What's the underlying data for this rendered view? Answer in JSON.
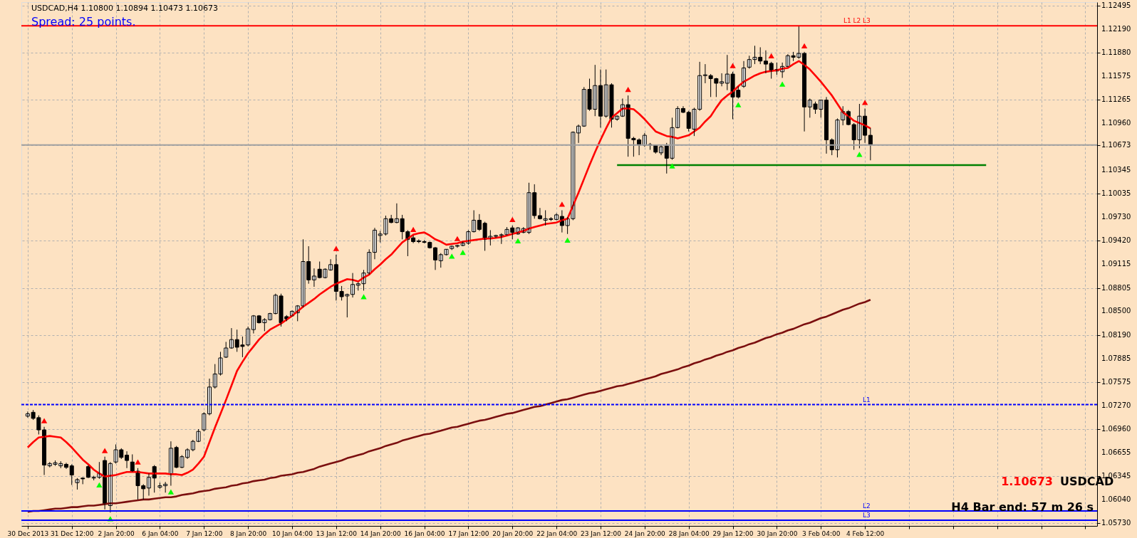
{
  "chart_data": {
    "type": "candlestick",
    "title": "USDCAD,H4  1.10800 1.10894 1.10473 1.10673",
    "categories": [
      "30 Dec 2013",
      null,
      null,
      null,
      null,
      null,
      null,
      null,
      "31 Dec 12:00",
      null,
      null,
      null,
      null,
      null,
      null,
      null,
      "2 Jan 20:00",
      null,
      null,
      null,
      null,
      null,
      null,
      null,
      "6 Jan 04:00",
      null,
      null,
      null,
      null,
      null,
      null,
      null,
      "7 Jan 12:00",
      null,
      null,
      null,
      null,
      null,
      null,
      null,
      "8 Jan 20:00",
      null,
      null,
      null,
      null,
      null,
      null,
      null,
      "10 Jan 04:00",
      null,
      null,
      null,
      null,
      null,
      null,
      null,
      "13 Jan 12:00",
      null,
      null,
      null,
      null,
      null,
      null,
      null,
      "14 Jan 20:00",
      null,
      null,
      null,
      null,
      null,
      null,
      null,
      "16 Jan 04:00",
      null,
      null,
      null,
      null,
      null,
      null,
      null,
      "17 Jan 12:00",
      null,
      null,
      null,
      null,
      null,
      null,
      null,
      "20 Jan 20:00",
      null,
      null,
      null,
      null,
      null,
      null,
      null,
      "22 Jan 04:00",
      null,
      null,
      null,
      null,
      null,
      null,
      null,
      "23 Jan 12:00",
      null,
      null,
      null,
      null,
      null,
      null,
      null,
      "24 Jan 20:00",
      null,
      null,
      null,
      null,
      null,
      null,
      null,
      "28 Jan 04:00",
      null,
      null,
      null,
      null,
      null,
      null,
      null,
      "29 Jan 12:00",
      null,
      null,
      null,
      null,
      null,
      null,
      null,
      "30 Jan 20:00",
      null,
      null,
      null,
      null,
      null,
      null,
      null,
      "3 Feb 04:00",
      null,
      null,
      null,
      null,
      null,
      null,
      null,
      "4 Feb 12:00",
      null,
      null,
      null,
      null,
      null,
      null,
      null,
      null,
      null,
      null,
      null,
      null,
      null,
      null,
      null,
      null,
      null,
      null,
      null,
      null,
      null,
      null,
      null,
      null,
      null,
      null,
      null,
      null,
      null,
      null,
      null,
      null,
      null,
      null,
      null,
      null,
      null,
      null,
      null,
      null,
      null
    ],
    "ohlc": [
      [
        1.0713,
        1.0719,
        1.0711,
        1.0716
      ],
      [
        1.0718,
        1.0721,
        1.0708,
        1.071
      ],
      [
        1.0711,
        1.0714,
        1.0689,
        1.0695
      ],
      [
        1.0695,
        1.0699,
        1.0636,
        1.0649
      ],
      [
        1.0648,
        1.0653,
        1.0646,
        1.0651
      ],
      [
        1.065,
        1.0655,
        1.0648,
        1.0652
      ],
      [
        1.0648,
        1.0654,
        1.0645,
        1.0651
      ],
      [
        1.065,
        1.0652,
        1.0644,
        1.0646
      ],
      [
        1.0648,
        1.065,
        1.0623,
        1.0636
      ],
      [
        1.0626,
        1.0632,
        1.0617,
        1.063
      ],
      [
        1.0632,
        1.0633,
        1.0624,
        1.0631
      ],
      [
        1.0647,
        1.0649,
        1.0632,
        1.0633
      ],
      [
        1.0632,
        1.0635,
        1.0629,
        1.0633
      ],
      [
        1.0633,
        1.0653,
        1.0631,
        1.0638
      ],
      [
        1.0655,
        1.066,
        1.0591,
        1.0598
      ],
      [
        1.0596,
        1.0653,
        1.0587,
        1.0651
      ],
      [
        1.0653,
        1.0676,
        1.0651,
        1.0669
      ],
      [
        1.0669,
        1.0671,
        1.0657,
        1.0659
      ],
      [
        1.0662,
        1.0667,
        1.0645,
        1.0655
      ],
      [
        1.0653,
        1.0663,
        1.064,
        1.0641
      ],
      [
        1.0641,
        1.0645,
        1.0604,
        1.0622
      ],
      [
        1.0622,
        1.0624,
        1.0604,
        1.0618
      ],
      [
        1.0619,
        1.0638,
        1.0609,
        1.0633
      ],
      [
        1.0647,
        1.0649,
        1.0613,
        1.0632
      ],
      [
        1.062,
        1.0626,
        1.0618,
        1.0622
      ],
      [
        1.0622,
        1.0627,
        1.0613,
        1.0624
      ],
      [
        1.0637,
        1.068,
        1.0622,
        1.0671
      ],
      [
        1.0672,
        1.0674,
        1.0645,
        1.0646
      ],
      [
        1.0646,
        1.0662,
        1.0645,
        1.066
      ],
      [
        1.0659,
        1.0671,
        1.0657,
        1.0669
      ],
      [
        1.0669,
        1.0682,
        1.0667,
        1.068
      ],
      [
        1.068,
        1.0696,
        1.0679,
        1.0693
      ],
      [
        1.0695,
        1.0718,
        1.0693,
        1.0716
      ],
      [
        1.0716,
        1.0762,
        1.0714,
        1.0751
      ],
      [
        1.0751,
        1.0781,
        1.0749,
        1.0768
      ],
      [
        1.0768,
        1.0797,
        1.0766,
        1.0789
      ],
      [
        1.079,
        1.081,
        1.0789,
        1.0802
      ],
      [
        1.0802,
        1.0828,
        1.0801,
        1.0813
      ],
      [
        1.0813,
        1.0826,
        1.0797,
        1.0803
      ],
      [
        1.0806,
        1.0817,
        1.079,
        1.0804
      ],
      [
        1.0806,
        1.083,
        1.0804,
        1.0827
      ],
      [
        1.0826,
        1.0845,
        1.0821,
        1.0844
      ],
      [
        1.0844,
        1.0845,
        1.0834,
        1.0835
      ],
      [
        1.0835,
        1.0841,
        1.0824,
        1.0839
      ],
      [
        1.0839,
        1.0848,
        1.0838,
        1.0847
      ],
      [
        1.0847,
        1.0873,
        1.0846,
        1.0871
      ],
      [
        1.087,
        1.0873,
        1.083,
        1.0835
      ],
      [
        1.0843,
        1.0845,
        1.0837,
        1.084
      ],
      [
        1.0844,
        1.0851,
        1.0843,
        1.085
      ],
      [
        1.0848,
        1.0858,
        1.0837,
        1.0857
      ],
      [
        1.0857,
        1.0944,
        1.0855,
        1.0915
      ],
      [
        1.0915,
        1.0935,
        1.0886,
        1.0891
      ],
      [
        1.0891,
        1.0906,
        1.0882,
        1.0896
      ],
      [
        1.0905,
        1.0915,
        1.0893,
        1.0894
      ],
      [
        1.0894,
        1.0906,
        1.0893,
        1.0905
      ],
      [
        1.0904,
        1.0918,
        1.0903,
        1.0911
      ],
      [
        1.0911,
        1.0924,
        1.0864,
        1.0876
      ],
      [
        1.0876,
        1.0883,
        1.0864,
        1.0869
      ],
      [
        1.087,
        1.0873,
        1.0842,
        1.0872
      ],
      [
        1.0872,
        1.09,
        1.0868,
        1.0885
      ],
      [
        1.0884,
        1.0888,
        1.0877,
        1.0886
      ],
      [
        1.0886,
        1.0904,
        1.0877,
        1.09
      ],
      [
        1.09,
        1.0931,
        1.0898,
        1.0927
      ],
      [
        1.0927,
        1.0959,
        1.0918,
        1.0956
      ],
      [
        1.0949,
        1.0955,
        1.094,
        1.0951
      ],
      [
        1.0951,
        1.0975,
        1.0949,
        1.0971
      ],
      [
        1.0971,
        1.0976,
        1.0965,
        1.0966
      ],
      [
        1.0966,
        1.0991,
        1.0965,
        1.0971
      ],
      [
        1.0971,
        1.0976,
        1.0944,
        1.0954
      ],
      [
        1.0954,
        1.0956,
        1.0922,
        1.0944
      ],
      [
        1.0946,
        1.0949,
        1.0939,
        1.0941
      ],
      [
        1.0942,
        1.0944,
        1.0939,
        1.0941
      ],
      [
        1.0941,
        1.0943,
        1.0939,
        1.094
      ],
      [
        1.094,
        1.0941,
        1.0932,
        1.0933
      ],
      [
        1.0933,
        1.0934,
        1.0904,
        1.0917
      ],
      [
        1.0916,
        1.0926,
        1.0907,
        1.0924
      ],
      [
        1.0924,
        1.0931,
        1.0923,
        1.0931
      ],
      [
        1.0932,
        1.0936,
        1.093,
        1.0935
      ],
      [
        1.0935,
        1.0937,
        1.0933,
        1.0936
      ],
      [
        1.0936,
        1.0941,
        1.0935,
        1.0939
      ],
      [
        1.0939,
        1.0956,
        1.0937,
        1.0954
      ],
      [
        1.0954,
        1.0982,
        1.0953,
        1.0969
      ],
      [
        1.0969,
        1.0977,
        1.0955,
        1.0957
      ],
      [
        1.0965,
        1.0967,
        1.0929,
        1.0944
      ],
      [
        1.0946,
        1.0956,
        1.0936,
        1.0948
      ],
      [
        1.0948,
        1.095,
        1.0946,
        1.0949
      ],
      [
        1.0949,
        1.0952,
        1.0938,
        1.095
      ],
      [
        1.095,
        1.096,
        1.0949,
        1.0957
      ],
      [
        1.0959,
        1.0962,
        1.0944,
        1.0953
      ],
      [
        1.0951,
        1.096,
        1.095,
        1.0959
      ],
      [
        1.0953,
        1.096,
        1.0952,
        1.0958
      ],
      [
        1.0953,
        1.1018,
        1.0951,
        1.1005
      ],
      [
        1.1005,
        1.1016,
        1.0971,
        1.0975
      ],
      [
        1.0975,
        1.0985,
        1.097,
        1.0971
      ],
      [
        1.0969,
        1.0982,
        1.0962,
        1.0971
      ],
      [
        1.0971,
        1.0973,
        1.0968,
        1.097
      ],
      [
        1.097,
        1.0978,
        1.0969,
        1.0976
      ],
      [
        1.0974,
        1.0982,
        1.0953,
        1.0962
      ],
      [
        1.0962,
        1.0973,
        1.0951,
        1.0971
      ],
      [
        1.0971,
        1.1085,
        1.0969,
        1.1084
      ],
      [
        1.1083,
        1.1094,
        1.107,
        1.1092
      ],
      [
        1.1092,
        1.1143,
        1.1091,
        1.114
      ],
      [
        1.114,
        1.1154,
        1.1112,
        1.1114
      ],
      [
        1.1114,
        1.1172,
        1.1105,
        1.1145
      ],
      [
        1.1145,
        1.1166,
        1.109,
        1.1105
      ],
      [
        1.1105,
        1.1166,
        1.1103,
        1.1146
      ],
      [
        1.1146,
        1.1148,
        1.109,
        1.1101
      ],
      [
        1.1101,
        1.1106,
        1.1099,
        1.1105
      ],
      [
        1.1105,
        1.1128,
        1.1104,
        1.112
      ],
      [
        1.112,
        1.1132,
        1.1052,
        1.1076
      ],
      [
        1.1076,
        1.1078,
        1.1052,
        1.1074
      ],
      [
        1.1074,
        1.1076,
        1.1054,
        1.1067
      ],
      [
        1.1067,
        1.1083,
        1.1065,
        1.108
      ],
      [
        1.1067,
        1.107,
        1.1061,
        1.1068
      ],
      [
        1.1067,
        1.1068,
        1.1056,
        1.1058
      ],
      [
        1.1057,
        1.1067,
        1.1054,
        1.1065
      ],
      [
        1.1066,
        1.107,
        1.103,
        1.105
      ],
      [
        1.105,
        1.1103,
        1.1048,
        1.109
      ],
      [
        1.109,
        1.1118,
        1.1089,
        1.1115
      ],
      [
        1.1115,
        1.1118,
        1.1109,
        1.111
      ],
      [
        1.111,
        1.1112,
        1.1085,
        1.1089
      ],
      [
        1.1088,
        1.1116,
        1.1079,
        1.1114
      ],
      [
        1.1114,
        1.1176,
        1.1112,
        1.1158
      ],
      [
        1.1158,
        1.1173,
        1.1148,
        1.1159
      ],
      [
        1.1158,
        1.116,
        1.113,
        1.1154
      ],
      [
        1.1154,
        1.1155,
        1.113,
        1.1148
      ],
      [
        1.1148,
        1.1161,
        1.1144,
        1.115
      ],
      [
        1.1148,
        1.1185,
        1.1139,
        1.116
      ],
      [
        1.116,
        1.1163,
        1.1101,
        1.113
      ],
      [
        1.1139,
        1.1144,
        1.1128,
        1.113
      ],
      [
        1.1144,
        1.1177,
        1.1142,
        1.1168
      ],
      [
        1.1169,
        1.1184,
        1.1167,
        1.1179
      ],
      [
        1.1179,
        1.1197,
        1.1173,
        1.1182
      ],
      [
        1.1182,
        1.1195,
        1.1173,
        1.1177
      ],
      [
        1.1177,
        1.1191,
        1.1161,
        1.1173
      ],
      [
        1.1174,
        1.1176,
        1.1154,
        1.1164
      ],
      [
        1.1164,
        1.1175,
        1.1159,
        1.1166
      ],
      [
        1.1163,
        1.1175,
        1.1155,
        1.117
      ],
      [
        1.117,
        1.1186,
        1.1169,
        1.1184
      ],
      [
        1.1184,
        1.1189,
        1.1177,
        1.1182
      ],
      [
        1.1182,
        1.1223,
        1.118,
        1.1187
      ],
      [
        1.1187,
        1.1189,
        1.1085,
        1.1117
      ],
      [
        1.1117,
        1.1128,
        1.1103,
        1.1126
      ],
      [
        1.1121,
        1.1124,
        1.1108,
        1.1114
      ],
      [
        1.1114,
        1.1126,
        1.1103,
        1.1126
      ],
      [
        1.1126,
        1.113,
        1.1056,
        1.1074
      ],
      [
        1.1074,
        1.1076,
        1.1054,
        1.1061
      ],
      [
        1.1061,
        1.1102,
        1.1051,
        1.11
      ],
      [
        1.11,
        1.1118,
        1.1093,
        1.1111
      ],
      [
        1.1111,
        1.1113,
        1.1093,
        1.1094
      ],
      [
        1.1094,
        1.1096,
        1.1061,
        1.1074
      ],
      [
        1.1074,
        1.1121,
        1.1063,
        1.1105
      ],
      [
        1.1105,
        1.1115,
        1.107,
        1.108
      ],
      [
        1.108,
        1.10894,
        1.10473,
        1.10673
      ],
      null,
      null,
      null,
      null,
      null,
      null,
      null,
      null,
      null,
      null,
      null,
      null,
      null,
      null,
      null,
      null,
      null,
      null,
      null,
      null,
      null,
      null,
      null,
      null,
      null,
      null,
      null,
      null,
      null,
      null,
      null,
      null,
      null,
      null,
      null,
      null,
      null,
      null,
      null,
      null
    ],
    "series": [
      {
        "type": "line",
        "color": "#ff0000",
        "values": [
          1.0672,
          1.0679,
          1.0685,
          1.0686,
          1.0687,
          1.0686,
          1.0685,
          1.0679,
          1.0672,
          1.0664,
          1.0656,
          1.065,
          1.0643,
          1.0638,
          1.0634,
          1.0635,
          1.0636,
          1.0638,
          1.064,
          1.064,
          1.064,
          1.0639,
          1.0638,
          1.0638,
          1.0638,
          1.0638,
          1.0637,
          1.0637,
          1.0636,
          1.0639,
          1.0643,
          1.0651,
          1.066,
          1.0679,
          1.0698,
          1.0716,
          1.0734,
          1.0753,
          1.0772,
          1.0784,
          1.0795,
          1.0804,
          1.0813,
          1.082,
          1.0826,
          1.083,
          1.0834,
          1.0839,
          1.0844,
          1.085,
          1.0856,
          1.0861,
          1.0866,
          1.0872,
          1.0877,
          1.0882,
          1.0886,
          1.0889,
          1.0892,
          1.0891,
          1.0889,
          1.0894,
          1.0898,
          1.0905,
          1.0911,
          1.0918,
          1.0924,
          1.0932,
          1.094,
          1.0945,
          1.095,
          1.0952,
          1.0953,
          1.0949,
          1.0944,
          1.0941,
          1.0937,
          1.0938,
          1.0939,
          1.0941,
          1.0942,
          1.0943,
          1.0944,
          1.0945,
          1.0945,
          1.0946,
          1.0947,
          1.0949,
          1.0951,
          1.0953,
          1.0955,
          1.0958,
          1.096,
          1.0962,
          1.0964,
          1.0965,
          1.0966,
          1.0969,
          1.0971,
          1.0988,
          1.1005,
          1.1023,
          1.1041,
          1.1058,
          1.1074,
          1.1089,
          1.1103,
          1.1109,
          1.1115,
          1.1115,
          1.1114,
          1.1108,
          1.1101,
          1.1093,
          1.1085,
          1.1082,
          1.1079,
          1.1078,
          1.1076,
          1.1078,
          1.108,
          1.1085,
          1.109,
          1.1098,
          1.1105,
          1.1116,
          1.1126,
          1.1132,
          1.1137,
          1.1144,
          1.115,
          1.1154,
          1.1158,
          1.1161,
          1.1163,
          1.1164,
          1.1165,
          1.1167,
          1.1168,
          1.1173,
          1.1177,
          1.1172,
          1.1166,
          1.1158,
          1.115,
          1.1141,
          1.1132,
          1.1121,
          1.111,
          1.1105,
          1.1099,
          1.1096,
          1.1093,
          1.1089,
          null,
          null,
          null,
          null,
          null,
          null,
          null,
          null,
          null,
          null,
          null,
          null,
          null,
          null,
          null,
          null,
          null,
          null,
          null,
          null,
          null,
          null,
          null,
          null,
          null,
          null,
          null,
          null,
          null,
          null,
          null,
          null,
          null,
          null,
          null,
          null,
          null,
          null,
          null,
          null
        ]
      },
      {
        "type": "line",
        "color": "#7b0f0f",
        "values": [
          1.0588,
          1.0589,
          1.0589,
          1.059,
          1.0591,
          1.0592,
          1.0592,
          1.0593,
          1.0594,
          1.0594,
          1.0595,
          1.0596,
          1.0596,
          1.0597,
          1.0598,
          1.0599,
          1.0599,
          1.06,
          1.0601,
          1.0602,
          1.0603,
          1.0604,
          1.0604,
          1.0605,
          1.0606,
          1.0607,
          1.0607,
          1.0608,
          1.061,
          1.0611,
          1.0612,
          1.0614,
          1.0615,
          1.0616,
          1.0618,
          1.0619,
          1.062,
          1.0622,
          1.0623,
          1.0625,
          1.0626,
          1.0628,
          1.0629,
          1.063,
          1.0632,
          1.0633,
          1.0635,
          1.0636,
          1.0637,
          1.0639,
          1.064,
          1.0642,
          1.0644,
          1.0647,
          1.0649,
          1.0651,
          1.0653,
          1.0655,
          1.0658,
          1.066,
          1.0662,
          1.0664,
          1.0667,
          1.0669,
          1.0671,
          1.0674,
          1.0676,
          1.0678,
          1.0681,
          1.0683,
          1.0685,
          1.0687,
          1.0689,
          1.069,
          1.0692,
          1.0694,
          1.0696,
          1.0698,
          1.0699,
          1.0701,
          1.0703,
          1.0705,
          1.0707,
          1.0708,
          1.071,
          1.0712,
          1.0714,
          1.0716,
          1.0717,
          1.0719,
          1.0721,
          1.0723,
          1.0725,
          1.0726,
          1.0728,
          1.073,
          1.0732,
          1.0734,
          1.0735,
          1.0737,
          1.0739,
          1.0741,
          1.0743,
          1.0744,
          1.0746,
          1.0748,
          1.075,
          1.0752,
          1.0753,
          1.0755,
          1.0757,
          1.0759,
          1.0761,
          1.0763,
          1.0765,
          1.0768,
          1.077,
          1.0772,
          1.0774,
          1.0777,
          1.0779,
          1.0782,
          1.0784,
          1.0787,
          1.0789,
          1.0792,
          1.0794,
          1.0797,
          1.0799,
          1.0802,
          1.0804,
          1.0807,
          1.0809,
          1.0812,
          1.0815,
          1.0817,
          1.082,
          1.0822,
          1.0825,
          1.0827,
          1.083,
          1.0833,
          1.0835,
          1.0838,
          1.0841,
          1.0843,
          1.0846,
          1.0849,
          1.0852,
          1.0854,
          1.0857,
          1.086,
          1.0862,
          1.0865,
          null,
          null,
          null,
          null,
          null,
          null,
          null,
          null,
          null,
          null,
          null,
          null,
          null,
          null,
          null,
          null,
          null,
          null,
          null,
          null,
          null,
          null,
          null,
          null,
          null,
          null,
          null,
          null,
          null,
          null,
          null,
          null,
          null,
          null,
          null,
          null,
          null,
          null,
          null,
          null
        ]
      },
      {
        "type": "line",
        "color": "#008000",
        "values": [
          null,
          null,
          null,
          null,
          null,
          null,
          null,
          null,
          null,
          null,
          null,
          null,
          null,
          null,
          null,
          null,
          null,
          null,
          null,
          null,
          null,
          null,
          null,
          null,
          null,
          null,
          null,
          null,
          null,
          null,
          null,
          null,
          null,
          null,
          null,
          null,
          null,
          null,
          null,
          null,
          null,
          null,
          null,
          null,
          null,
          null,
          null,
          null,
          null,
          null,
          null,
          null,
          null,
          null,
          null,
          null,
          null,
          null,
          null,
          null,
          null,
          null,
          null,
          null,
          null,
          null,
          null,
          null,
          null,
          null,
          null,
          null,
          null,
          null,
          null,
          null,
          null,
          null,
          null,
          null,
          null,
          null,
          null,
          null,
          null,
          null,
          null,
          null,
          null,
          null,
          null,
          null,
          null,
          null,
          null,
          null,
          null,
          null,
          null,
          null,
          null,
          null,
          null,
          null,
          null,
          null,
          null,
          1.1041,
          1.1041,
          1.1041,
          1.1041,
          1.1041,
          1.1041,
          1.1041,
          1.1041,
          1.1041,
          1.1041,
          1.1041,
          1.1041,
          1.1041,
          1.1041,
          1.1041,
          1.1041,
          1.1041,
          1.1041,
          1.1041,
          1.1041,
          1.1041,
          1.1041,
          1.1041,
          1.1041,
          1.1041,
          1.1041,
          1.1041,
          1.1041,
          1.1041,
          1.1041,
          1.1041,
          1.1041,
          1.1041,
          1.1041,
          1.1041,
          1.1041,
          1.1041,
          1.1041,
          1.1041,
          1.1041,
          1.1041,
          1.1041,
          1.1041,
          1.1041,
          1.1041,
          1.1041,
          1.1041,
          1.1041,
          1.1041,
          1.1041,
          1.1041,
          1.1041,
          1.1041,
          1.1041,
          1.1041,
          1.1041,
          1.1041,
          1.1041,
          1.1041,
          1.1041,
          1.1041,
          1.1041,
          1.1041,
          1.1041,
          1.1041,
          1.1041,
          1.1041,
          1.1041,
          null,
          null,
          null,
          null,
          null,
          null,
          null,
          null,
          null,
          null,
          null,
          null,
          null,
          null,
          null,
          null,
          null,
          null,
          null
        ]
      },
      {
        "type": "scatter",
        "color": "#ff0000",
        "marker": "triangle",
        "values": [
          null,
          null,
          null,
          1.0707,
          null,
          null,
          null,
          null,
          null,
          null,
          null,
          null,
          null,
          null,
          1.0668,
          null,
          null,
          null,
          null,
          null,
          1.0653,
          null,
          null,
          null,
          null,
          null,
          null,
          null,
          null,
          null,
          null,
          null,
          null,
          null,
          null,
          null,
          null,
          null,
          null,
          null,
          null,
          null,
          null,
          null,
          null,
          null,
          null,
          null,
          null,
          null,
          null,
          null,
          null,
          null,
          null,
          null,
          1.0932,
          null,
          null,
          null,
          null,
          null,
          null,
          null,
          null,
          null,
          null,
          null,
          null,
          null,
          1.0957,
          null,
          null,
          null,
          null,
          null,
          null,
          null,
          1.0945,
          null,
          null,
          null,
          null,
          null,
          null,
          null,
          null,
          null,
          1.097,
          null,
          null,
          null,
          null,
          null,
          null,
          null,
          null,
          1.099,
          null,
          null,
          null,
          null,
          null,
          null,
          null,
          null,
          null,
          null,
          null,
          1.114,
          null,
          null,
          null,
          null,
          null,
          null,
          null,
          null,
          null,
          null,
          null,
          null,
          null,
          null,
          null,
          null,
          null,
          null,
          1.1171,
          null,
          null,
          null,
          null,
          null,
          null,
          1.1184,
          null,
          null,
          null,
          null,
          null,
          1.1197,
          null,
          null,
          null,
          null,
          null,
          null,
          null,
          null,
          null,
          null,
          1.1123,
          null,
          null,
          null,
          null,
          null,
          null,
          null,
          null,
          null,
          null,
          null,
          null,
          null,
          null,
          null,
          null,
          null,
          null,
          null,
          null,
          null,
          null,
          null,
          null,
          null,
          null,
          null,
          null,
          null,
          null,
          null,
          null,
          null,
          null,
          null,
          null,
          null,
          null,
          null,
          null,
          null
        ]
      },
      {
        "type": "scatter",
        "color": "#00ff00",
        "marker": "triangle",
        "values": [
          null,
          null,
          null,
          null,
          null,
          null,
          null,
          null,
          null,
          null,
          null,
          null,
          null,
          1.0623,
          null,
          1.0579,
          null,
          null,
          null,
          null,
          null,
          null,
          null,
          null,
          null,
          null,
          1.0614,
          null,
          null,
          null,
          null,
          null,
          null,
          null,
          null,
          null,
          null,
          null,
          null,
          null,
          null,
          null,
          null,
          null,
          null,
          null,
          null,
          null,
          null,
          null,
          null,
          null,
          null,
          null,
          null,
          null,
          null,
          null,
          null,
          null,
          null,
          1.0869,
          null,
          null,
          null,
          null,
          null,
          null,
          null,
          null,
          null,
          null,
          null,
          null,
          null,
          null,
          null,
          1.0922,
          null,
          1.0927,
          null,
          null,
          null,
          null,
          null,
          null,
          null,
          null,
          null,
          1.0942,
          null,
          null,
          null,
          null,
          null,
          null,
          null,
          null,
          1.0943,
          null,
          null,
          null,
          null,
          null,
          null,
          null,
          null,
          null,
          null,
          null,
          null,
          null,
          null,
          null,
          null,
          null,
          null,
          1.104,
          null,
          null,
          null,
          null,
          null,
          null,
          null,
          null,
          null,
          null,
          null,
          1.112,
          null,
          null,
          null,
          null,
          null,
          null,
          null,
          1.1147,
          null,
          null,
          null,
          null,
          null,
          null,
          null,
          null,
          null,
          null,
          null,
          null,
          null,
          1.1055,
          null,
          null,
          null,
          null,
          null,
          null,
          null,
          null,
          null,
          null,
          null,
          null,
          null,
          null,
          null,
          null,
          null,
          null,
          null,
          null,
          null,
          null,
          null,
          null,
          null,
          null,
          null,
          null,
          null,
          null,
          null,
          null,
          null,
          null,
          null,
          null,
          null,
          null,
          null,
          null,
          null,
          null
        ]
      }
    ],
    "ylim": [
      1.05695,
      1.1254
    ],
    "yticks": [
      {
        "value": 1.12495,
        "label": "1.12495"
      },
      {
        "value": 1.1219,
        "label": "1.12190"
      },
      {
        "value": 1.1188,
        "label": "1.11880"
      },
      {
        "value": 1.11575,
        "label": "1.11575"
      },
      {
        "value": 1.11265,
        "label": "1.11265"
      },
      {
        "value": 1.1096,
        "label": "1.10960"
      },
      {
        "value": 1.10673,
        "label": "1.10673"
      },
      {
        "value": 1.10345,
        "label": "1.10345"
      },
      {
        "value": 1.10035,
        "label": "1.10035"
      },
      {
        "value": 1.0973,
        "label": "1.09730"
      },
      {
        "value": 1.0942,
        "label": "1.09420"
      },
      {
        "value": 1.09115,
        "label": "1.09115"
      },
      {
        "value": 1.08805,
        "label": "1.08805"
      },
      {
        "value": 1.085,
        "label": "1.08500"
      },
      {
        "value": 1.0819,
        "label": "1.08190"
      },
      {
        "value": 1.07885,
        "label": "1.07885"
      },
      {
        "value": 1.07575,
        "label": "1.07575"
      },
      {
        "value": 1.0727,
        "label": "1.07270"
      },
      {
        "value": 1.0696,
        "label": "1.06960"
      },
      {
        "value": 1.06655,
        "label": "1.06655"
      },
      {
        "value": 1.06345,
        "label": "1.06345"
      },
      {
        "value": 1.0604,
        "label": "1.06040"
      },
      {
        "value": 1.0573,
        "label": "1.05730"
      }
    ],
    "ref_lines": [
      {
        "axis": "y",
        "value": 1.1223,
        "label": "L1 L2 L3",
        "color": "#ff0000"
      },
      {
        "axis": "y",
        "value": 1.0728,
        "label": "L1",
        "color": "#0000ff",
        "line_style": "dashed"
      },
      {
        "axis": "y",
        "value": 1.0589,
        "label": "L2",
        "color": "#0000ff"
      },
      {
        "axis": "y",
        "value": 1.0577,
        "label": "L3",
        "color": "#0000ff"
      },
      {
        "axis": "y",
        "value": 1.10673,
        "color": "#a0a0a0"
      }
    ],
    "annotations": [
      "Spread: 25 points.",
      "1.10673",
      "USDCAD",
      "H4 Bar end: 57 m 26 s"
    ],
    "grid": true
  }
}
